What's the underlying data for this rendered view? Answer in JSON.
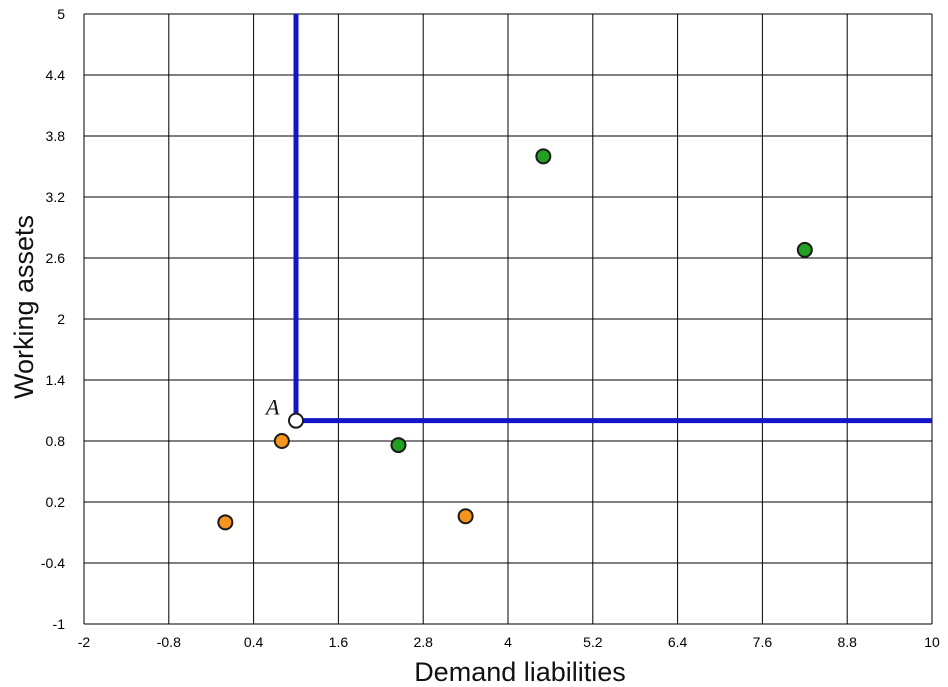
{
  "chart_data": {
    "type": "scatter",
    "xlabel": "Demand liabilities",
    "ylabel": "Working assets",
    "xlim": [
      -2,
      10
    ],
    "ylim": [
      -1,
      5
    ],
    "xticks": [
      "-2",
      "-0.8",
      "0.4",
      "1.6",
      "2.8",
      "4",
      "5.2",
      "6.4",
      "7.6",
      "8.8",
      "10"
    ],
    "yticks": [
      "-1",
      "-0.4",
      "0.2",
      "0.8",
      "1.4",
      "2",
      "2.6",
      "3.2",
      "3.8",
      "4.4",
      "5"
    ],
    "grid": true,
    "series": [
      {
        "color": "#22a022",
        "points": [
          {
            "x": 4.5,
            "y": 3.6
          },
          {
            "x": 8.2,
            "y": 2.68
          },
          {
            "x": 2.45,
            "y": 0.76
          }
        ]
      },
      {
        "color": "#f7941d",
        "points": [
          {
            "x": 0.0,
            "y": 0.0
          },
          {
            "x": 0.8,
            "y": 0.8
          },
          {
            "x": 3.4,
            "y": 0.06
          }
        ]
      }
    ],
    "reference_point": {
      "label": "A",
      "x": 1,
      "y": 1,
      "color": "#ffffff"
    },
    "boundary_lines": {
      "color": "#1515c8",
      "vertical": {
        "x": 1,
        "y_from": 1,
        "y_to": 5
      },
      "horizontal": {
        "y": 1,
        "x_from": 1,
        "x_to": 10
      }
    }
  }
}
